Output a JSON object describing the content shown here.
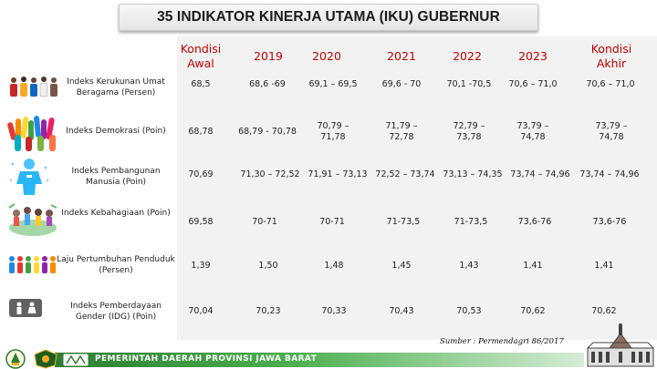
{
  "title": "35 INDIKATOR KINERJA UTAMA (IKU) GUBERNUR",
  "columns": [
    {
      "label": "Kondisi Awal"
    },
    {
      "label": "2019"
    },
    {
      "label": "2020"
    },
    {
      "label": "2021"
    },
    {
      "label": "2022"
    },
    {
      "label": "2023"
    },
    {
      "label": "Kondisi Akhir"
    }
  ],
  "rows": [
    {
      "label": "Indeks Kerukunan Umat Beragama (Persen)",
      "icon": "people-group-icon",
      "values": [
        "68,5",
        "68,6 -69",
        "69,1 – 69,5",
        "69,6 - 70",
        "70,1 -70,5",
        "70,6 – 71,0",
        "70,6 – 71,0"
      ]
    },
    {
      "label": "Indeks Demokrasi (Poin)",
      "icon": "raised-hands-icon",
      "values": [
        "68,78",
        "68,79 - 70,78",
        "70,79 – 71,78",
        "71,79 – 72,78",
        "72,79 – 73,78",
        "73,79 – 74,78",
        "73,79 – 74,78"
      ]
    },
    {
      "label": "Indeks Pembangunan Manusia (Poin)",
      "icon": "human-figure-icon",
      "values": [
        "70,69",
        "71,30 – 72,52",
        "71,91 – 73,13",
        "72,52 – 73,74",
        "73,13 – 74,35",
        "73,74 – 74,96",
        "73,74 – 74,96"
      ]
    },
    {
      "label": "Indeks Kebahagiaan (Poin)",
      "icon": "happy-crowd-icon",
      "values": [
        "69,58",
        "70-71",
        "70-71",
        "71-73,5",
        "71-73,5",
        "73,6-76",
        "73,6-76"
      ]
    },
    {
      "label": "Laju Pertumbuhan Penduduk (Persen)",
      "icon": "population-icon",
      "values": [
        "1,39",
        "1,50",
        "1,48",
        "1,45",
        "1,43",
        "1,41",
        "1,41"
      ]
    },
    {
      "label": "Indeks Pemberdayaan Gender (IDG) (Poin)",
      "icon": "gender-icon",
      "values": [
        "70,04",
        "70,23",
        "70,33",
        "70,43",
        "70,53",
        "70,62",
        "70,62"
      ]
    }
  ],
  "source": "Sumber : Permendagri 86/2017",
  "footer": {
    "text": "PEMERINTAH DAERAH PROVINSI JAWA BARAT",
    "logos": [
      "west-java-emblem-icon",
      "government-seal-icon",
      "regional-logo-icon"
    ],
    "building": "gedung-sate-icon"
  },
  "colors": {
    "header_text": "#c00000",
    "table_bg": "#f2f2f2",
    "footer_green": "#2e7d32"
  }
}
